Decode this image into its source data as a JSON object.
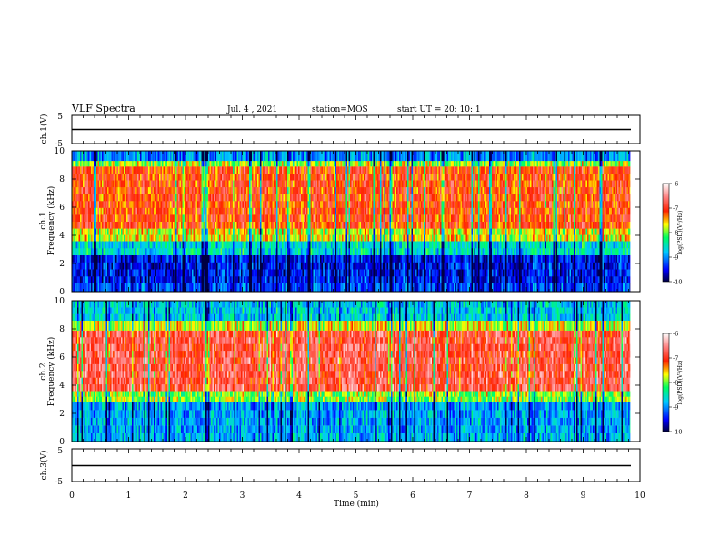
{
  "header": {
    "title": "VLF Spectra",
    "date": "Jul. 4 , 2021",
    "station": "station=MOS",
    "start_ut": "start UT =  20: 10: 1"
  },
  "chart_data": [
    {
      "type": "line",
      "panel": "ch1-voltage",
      "ylabel": "ch.1(V)",
      "ylim": [
        -5,
        5
      ],
      "ytick_labels": [
        "5",
        "-5"
      ],
      "series": [
        {
          "values_description_level": -1.5
        }
      ],
      "x": [
        0,
        9.83
      ],
      "y": [
        -1.5,
        -1.5
      ]
    },
    {
      "type": "heatmap",
      "panel": "ch1-spectrogram",
      "ylabel": "ch.1",
      "ylabel2": "Frequency (kHz)",
      "ylim": [
        0,
        10
      ],
      "yticks": [
        0,
        2,
        4,
        6,
        8,
        10
      ],
      "xlim": [
        0,
        10
      ],
      "data_end_min": 9.83,
      "bands_khz": [
        {
          "from": 0.0,
          "to": 0.6,
          "log_psd": -9.3
        },
        {
          "from": 0.6,
          "to": 2.6,
          "log_psd": -9.5
        },
        {
          "from": 2.6,
          "to": 3.6,
          "log_psd": -8.6
        },
        {
          "from": 3.6,
          "to": 4.5,
          "log_psd": -7.7
        },
        {
          "from": 4.5,
          "to": 8.9,
          "log_psd": -7.1
        },
        {
          "from": 8.9,
          "to": 9.3,
          "log_psd": -7.9
        },
        {
          "from": 9.3,
          "to": 10.0,
          "log_psd": -9.0
        }
      ],
      "colorbar": {
        "label": "log(PSD)(V²/Hz)",
        "range": [
          -10,
          -6
        ],
        "ticks": [
          "-6",
          "-7",
          "-8",
          "-9",
          "-10"
        ]
      }
    },
    {
      "type": "heatmap",
      "panel": "ch2-spectrogram",
      "ylabel": "ch.2",
      "ylabel2": "Frequency (kHz)",
      "ylim": [
        0,
        10
      ],
      "yticks": [
        0,
        2,
        4,
        6,
        8,
        10
      ],
      "xlim": [
        0,
        10
      ],
      "data_end_min": 9.83,
      "bands_khz": [
        {
          "from": 0.0,
          "to": 0.6,
          "log_psd": -8.8
        },
        {
          "from": 0.6,
          "to": 2.8,
          "log_psd": -8.9
        },
        {
          "from": 2.8,
          "to": 3.6,
          "log_psd": -7.9
        },
        {
          "from": 3.6,
          "to": 7.9,
          "log_psd": -6.8
        },
        {
          "from": 7.9,
          "to": 8.6,
          "log_psd": -7.7
        },
        {
          "from": 8.6,
          "to": 10.0,
          "log_psd": -8.7
        }
      ],
      "colorbar": {
        "label": "log(PSD)(V²/Hz)",
        "range": [
          -10,
          -6
        ],
        "ticks": [
          "-6",
          "-7",
          "-8",
          "-9",
          "-10"
        ]
      }
    },
    {
      "type": "line",
      "panel": "ch3-voltage",
      "ylabel": "ch.3(V)",
      "ylim": [
        -5,
        5
      ],
      "ytick_labels": [
        "5",
        "-5"
      ],
      "x": [
        0,
        9.83
      ],
      "y": [
        -1.5,
        -1.5
      ]
    }
  ],
  "xaxis": {
    "label": "Time (min)",
    "range": [
      0,
      10
    ],
    "tick_labels": [
      "0",
      "1",
      "2",
      "3",
      "4",
      "5",
      "6",
      "7",
      "8",
      "9",
      "10"
    ]
  },
  "colors": {
    "colormap": [
      "#000080",
      "#0000ff",
      "#00ffff",
      "#00ff00",
      "#ffff00",
      "#ff0000",
      "#ffffff"
    ]
  }
}
